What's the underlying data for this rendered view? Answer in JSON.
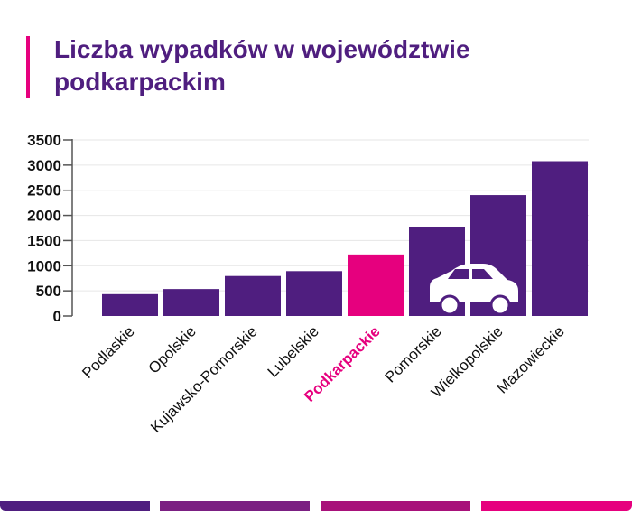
{
  "chart_data": {
    "type": "bar",
    "title": "Liczba wypadków w województwie podkarpackim",
    "xlabel": "",
    "ylabel": "",
    "ylim": [
      0,
      3500
    ],
    "yticks": [
      "0",
      "500",
      "1000",
      "1500",
      "2000",
      "2500",
      "3000",
      "3500"
    ],
    "grid": true,
    "categories": [
      "Podlaskie",
      "Opolskie",
      "Kujawsko-Pomorskie",
      "Lubelskie",
      "Podkarpackie",
      "Pomorskie",
      "Wielkopolskie",
      "Mazowieckie"
    ],
    "values": [
      434,
      536,
      795,
      892,
      1223,
      1777,
      2404,
      3078
    ],
    "highlight": "Podkarpackie"
  },
  "colors": {
    "bar": "#4f1e7f",
    "highlight": "#e6007e",
    "stripes": [
      "#4f1e7f",
      "#7b1f82",
      "#a8117a",
      "#e6007e"
    ]
  },
  "icon": "car-icon"
}
